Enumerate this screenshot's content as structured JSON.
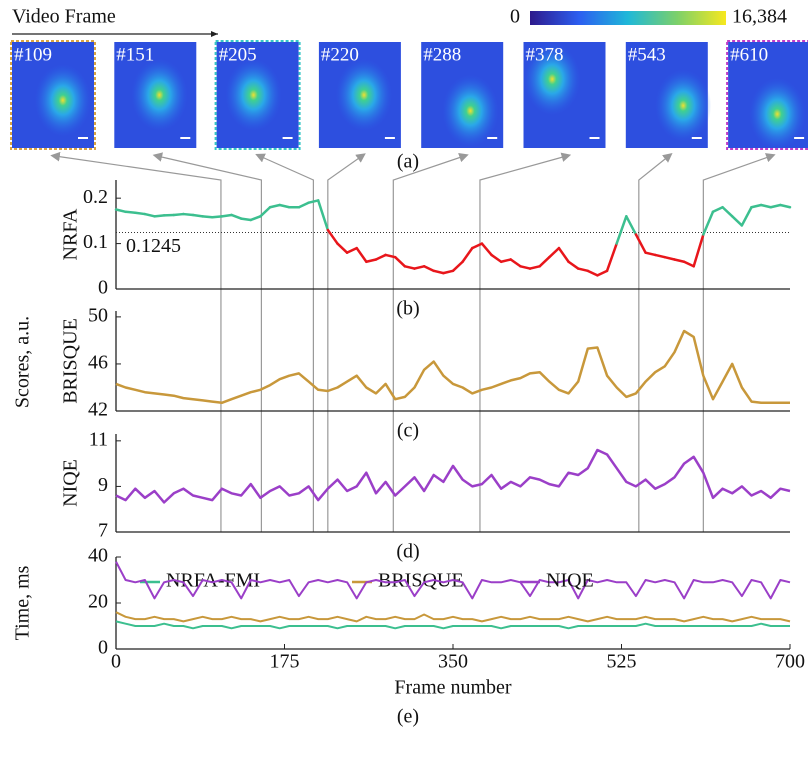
{
  "figure": {
    "header": "Video Frame",
    "colorbar_ticks": [
      0,
      {
        "value": 16384,
        "label": "16,384"
      }
    ],
    "frames": [
      {
        "value": 109,
        "label": "#109",
        "border": "#d9a441"
      },
      {
        "value": 151,
        "label": "#151"
      },
      {
        "value": 205,
        "label": "#205",
        "border": "#35c6c6"
      },
      {
        "value": 220,
        "label": "#220"
      },
      {
        "value": 288,
        "label": "#288"
      },
      {
        "value": 378,
        "label": "#378"
      },
      {
        "value": 543,
        "label": "#543"
      },
      {
        "value": 610,
        "label": "#610",
        "border": "#c03cc8"
      }
    ],
    "panel_labels": [
      "(a)",
      "(b)",
      "(c)",
      "(d)",
      "(e)"
    ],
    "shared_ylabel": "Scores, a.u."
  },
  "chart_data": [
    {
      "type": "threshold-line",
      "ylabel": "NRFA",
      "xlim": [
        0,
        700
      ],
      "ylim": [
        0,
        0.24
      ],
      "yticks": [
        0,
        0.1,
        0.2
      ],
      "threshold": 0.1245,
      "x": [
        0,
        10,
        20,
        30,
        40,
        50,
        60,
        70,
        80,
        90,
        100,
        110,
        120,
        130,
        140,
        150,
        160,
        170,
        180,
        190,
        200,
        210,
        220,
        230,
        240,
        250,
        260,
        270,
        280,
        290,
        300,
        310,
        320,
        330,
        340,
        350,
        360,
        370,
        380,
        390,
        400,
        410,
        420,
        430,
        440,
        450,
        460,
        470,
        480,
        490,
        500,
        510,
        520,
        530,
        540,
        550,
        560,
        570,
        580,
        590,
        600,
        610,
        620,
        630,
        640,
        650,
        660,
        670,
        680,
        690,
        700
      ],
      "series": [
        {
          "above_color": "#3cbf8f",
          "below_color": "#e8161b",
          "values": [
            0.175,
            0.17,
            0.168,
            0.165,
            0.16,
            0.162,
            0.163,
            0.165,
            0.163,
            0.16,
            0.158,
            0.16,
            0.163,
            0.155,
            0.152,
            0.16,
            0.18,
            0.185,
            0.18,
            0.18,
            0.19,
            0.195,
            0.13,
            0.1,
            0.08,
            0.09,
            0.06,
            0.065,
            0.075,
            0.07,
            0.05,
            0.045,
            0.05,
            0.04,
            0.035,
            0.04,
            0.06,
            0.09,
            0.1,
            0.075,
            0.06,
            0.065,
            0.05,
            0.045,
            0.05,
            0.07,
            0.09,
            0.06,
            0.045,
            0.04,
            0.03,
            0.04,
            0.1,
            0.16,
            0.12,
            0.08,
            0.075,
            0.07,
            0.065,
            0.06,
            0.05,
            0.12,
            0.17,
            0.18,
            0.16,
            0.14,
            0.18,
            0.185,
            0.18,
            0.185,
            0.18
          ]
        }
      ]
    },
    {
      "type": "line",
      "ylabel": "BRISQUE",
      "xlim": [
        0,
        700
      ],
      "ylim": [
        42,
        50.5
      ],
      "yticks": [
        42,
        46,
        50
      ],
      "x": [
        0,
        10,
        20,
        30,
        40,
        50,
        60,
        70,
        80,
        90,
        100,
        110,
        120,
        130,
        140,
        150,
        160,
        170,
        180,
        190,
        200,
        210,
        220,
        230,
        240,
        250,
        260,
        270,
        280,
        290,
        300,
        310,
        320,
        330,
        340,
        350,
        360,
        370,
        380,
        390,
        400,
        410,
        420,
        430,
        440,
        450,
        460,
        470,
        480,
        490,
        500,
        510,
        520,
        530,
        540,
        550,
        560,
        570,
        580,
        590,
        600,
        610,
        620,
        630,
        640,
        650,
        660,
        670,
        680,
        690,
        700
      ],
      "series": [
        {
          "color": "#c8983b",
          "values": [
            44.3,
            44,
            43.8,
            43.6,
            43.5,
            43.4,
            43.3,
            43.1,
            43,
            42.9,
            42.8,
            42.7,
            43,
            43.3,
            43.6,
            43.8,
            44.2,
            44.7,
            45,
            45.2,
            44.5,
            43.8,
            43.7,
            44,
            44.5,
            45,
            44,
            43.5,
            44.3,
            43,
            43.2,
            44,
            45.5,
            46.2,
            45,
            44.3,
            44,
            43.5,
            43.8,
            44,
            44.3,
            44.6,
            44.8,
            45.2,
            45.3,
            44.5,
            43.8,
            43.5,
            44.5,
            47.3,
            47.4,
            45,
            44,
            43.2,
            43.5,
            44.5,
            45.3,
            45.8,
            47,
            48.8,
            48.3,
            45,
            43,
            44.5,
            46,
            44,
            42.8,
            42.7,
            42.7,
            42.7,
            42.7
          ]
        }
      ]
    },
    {
      "type": "line",
      "ylabel": "NIQE",
      "xlim": [
        0,
        700
      ],
      "ylim": [
        7,
        11.3
      ],
      "yticks": [
        7,
        9,
        11
      ],
      "x": [
        0,
        10,
        20,
        30,
        40,
        50,
        60,
        70,
        80,
        90,
        100,
        110,
        120,
        130,
        140,
        150,
        160,
        170,
        180,
        190,
        200,
        210,
        220,
        230,
        240,
        250,
        260,
        270,
        280,
        290,
        300,
        310,
        320,
        330,
        340,
        350,
        360,
        370,
        380,
        390,
        400,
        410,
        420,
        430,
        440,
        450,
        460,
        470,
        480,
        490,
        500,
        510,
        520,
        530,
        540,
        550,
        560,
        570,
        580,
        590,
        600,
        610,
        620,
        630,
        640,
        650,
        660,
        670,
        680,
        690,
        700
      ],
      "series": [
        {
          "color": "#9b3fc8",
          "values": [
            8.6,
            8.4,
            8.9,
            8.5,
            8.8,
            8.3,
            8.7,
            8.9,
            8.6,
            8.5,
            8.4,
            8.9,
            8.7,
            8.6,
            9.1,
            8.5,
            8.8,
            9.0,
            8.6,
            8.7,
            9.0,
            8.4,
            8.9,
            9.3,
            8.8,
            9.0,
            9.6,
            8.7,
            9.2,
            8.6,
            9.0,
            9.4,
            8.8,
            9.5,
            9.2,
            9.9,
            9.3,
            9.0,
            9.1,
            9.5,
            8.9,
            9.2,
            9.0,
            9.4,
            9.3,
            9.1,
            9.0,
            9.6,
            9.5,
            9.8,
            10.6,
            10.4,
            9.8,
            9.2,
            9.0,
            9.3,
            8.9,
            9.1,
            9.4,
            10.0,
            10.3,
            9.6,
            8.5,
            8.9,
            8.7,
            9.0,
            8.6,
            8.8,
            8.5,
            8.9,
            8.8
          ]
        }
      ]
    },
    {
      "type": "line",
      "ylabel": "Time, ms",
      "xlabel": "Frame number",
      "xlim": [
        0,
        700
      ],
      "ylim": [
        0,
        40
      ],
      "yticks": [
        0,
        20,
        40
      ],
      "xticks": [
        0,
        175,
        350,
        525,
        700
      ],
      "legend": "top",
      "x": [
        0,
        10,
        20,
        30,
        40,
        50,
        60,
        70,
        80,
        90,
        100,
        110,
        120,
        130,
        140,
        150,
        160,
        170,
        180,
        190,
        200,
        210,
        220,
        230,
        240,
        250,
        260,
        270,
        280,
        290,
        300,
        310,
        320,
        330,
        340,
        350,
        360,
        370,
        380,
        390,
        400,
        410,
        420,
        430,
        440,
        450,
        460,
        470,
        480,
        490,
        500,
        510,
        520,
        530,
        540,
        550,
        560,
        570,
        580,
        590,
        600,
        610,
        620,
        630,
        640,
        650,
        660,
        670,
        680,
        690,
        700
      ],
      "series": [
        {
          "name": "NRFA-FMI",
          "color": "#3cbf8f",
          "values": [
            12,
            11,
            10,
            10,
            10,
            11,
            10,
            10,
            9,
            10,
            10,
            10,
            9,
            10,
            10,
            10,
            10,
            9,
            10,
            10,
            10,
            10,
            10,
            9,
            10,
            10,
            10,
            10,
            10,
            9,
            10,
            10,
            10,
            10,
            9,
            10,
            10,
            10,
            10,
            10,
            9,
            10,
            10,
            10,
            10,
            10,
            10,
            9,
            10,
            10,
            10,
            10,
            10,
            10,
            10,
            11,
            10,
            10,
            10,
            10,
            10,
            10,
            10,
            10,
            10,
            10,
            10,
            11,
            10,
            10,
            10
          ]
        },
        {
          "name": "BRISQUE",
          "color": "#c8983b",
          "values": [
            16,
            14,
            13,
            13,
            14,
            13,
            13,
            12,
            13,
            14,
            13,
            13,
            14,
            13,
            13,
            12,
            13,
            14,
            13,
            13,
            14,
            13,
            13,
            14,
            13,
            12,
            14,
            13,
            13,
            14,
            13,
            13,
            15,
            13,
            13,
            14,
            13,
            13,
            12,
            13,
            14,
            13,
            13,
            14,
            13,
            13,
            13,
            14,
            13,
            12,
            13,
            14,
            13,
            13,
            13,
            14,
            13,
            13,
            13,
            12,
            13,
            14,
            13,
            13,
            12,
            13,
            14,
            13,
            13,
            13,
            12
          ]
        },
        {
          "name": "NIQE",
          "color": "#9b3fc8",
          "values": [
            38,
            30,
            29,
            30,
            22,
            29,
            30,
            29,
            23,
            30,
            29,
            30,
            29,
            22,
            30,
            29,
            30,
            29,
            30,
            23,
            29,
            30,
            29,
            30,
            29,
            22,
            29,
            30,
            29,
            29,
            30,
            23,
            29,
            30,
            29,
            30,
            29,
            22,
            30,
            29,
            29,
            30,
            29,
            23,
            30,
            29,
            29,
            30,
            22,
            30,
            29,
            30,
            29,
            29,
            23,
            30,
            29,
            30,
            29,
            22,
            30,
            29,
            29,
            30,
            29,
            23,
            30,
            29,
            22,
            30,
            29
          ]
        }
      ]
    }
  ]
}
